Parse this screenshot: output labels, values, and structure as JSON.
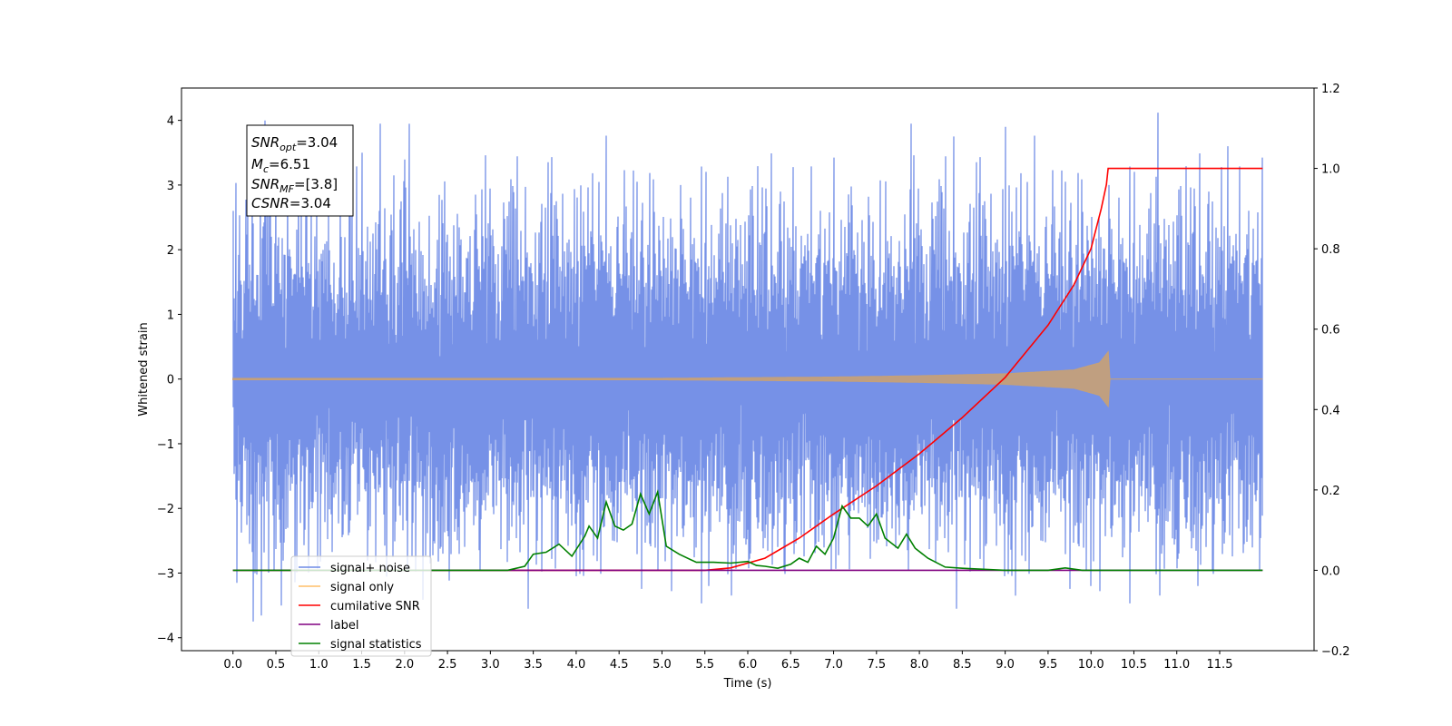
{
  "chart_data": {
    "type": "line",
    "xlabel": "Time (s)",
    "ylabel": "Whitened strain",
    "xlim": [
      -0.6,
      12.6
    ],
    "ylim_left": [
      -4.2,
      4.5
    ],
    "ylim_right": [
      -0.2,
      1.2
    ],
    "x_ticks": [
      "0.0",
      "0.5",
      "1.0",
      "1.5",
      "2.0",
      "2.5",
      "3.0",
      "3.5",
      "4.0",
      "4.5",
      "5.0",
      "5.5",
      "6.0",
      "6.5",
      "7.0",
      "7.5",
      "8.0",
      "8.5",
      "9.0",
      "9.5",
      "10.0",
      "10.5",
      "11.0",
      "11.5"
    ],
    "y_ticks_left": [
      "−4",
      "−3",
      "−2",
      "−1",
      "0",
      "1",
      "2",
      "3",
      "4"
    ],
    "y_ticks_right": [
      "−0.2",
      "0.0",
      "0.2",
      "0.4",
      "0.6",
      "0.8",
      "1.0",
      "1.2"
    ],
    "annotation": {
      "snr_opt": {
        "sym": "SNR",
        "sub": "opt",
        "val": "=3.04"
      },
      "mc": {
        "sym": "M",
        "sub": "c",
        "val": "=6.51"
      },
      "snr_mf": {
        "sym": "SNR",
        "sub": "MF",
        "val": "=[3.8]"
      },
      "csnr": {
        "sym": "CSNR",
        "sub": "",
        "val": "=3.04"
      }
    },
    "legend": {
      "placement": "lower-left",
      "items": [
        {
          "label": "signal+ noise",
          "color": "#6f8be6"
        },
        {
          "label": "signal only",
          "color": "#ffbf69"
        },
        {
          "label": "cumilative SNR",
          "color": "#ff0000"
        },
        {
          "label": "label",
          "color": "#800080"
        },
        {
          "label": "signal statistics",
          "color": "#008000"
        }
      ]
    },
    "series": [
      {
        "name": "signal+ noise",
        "axis": "left",
        "color": "#6f8be6",
        "x_range": [
          0.0,
          12.0
        ],
        "envelope_1sigma": 1.0,
        "max_spikes": [
          {
            "x": 0.0,
            "y": 2.6
          },
          {
            "x": 1.72,
            "y": 3.95
          },
          {
            "x": 1.5,
            "y": 3.5
          },
          {
            "x": 7.9,
            "y": 3.95
          },
          {
            "x": 9.0,
            "y": 3.9
          },
          {
            "x": 10.78,
            "y": 4.12
          },
          {
            "x": 11.6,
            "y": 3.6
          },
          {
            "x": 8.4,
            "y": 3.75
          }
        ],
        "min_spikes": [
          {
            "x": 0.24,
            "y": -3.75
          },
          {
            "x": 0.05,
            "y": -3.15
          },
          {
            "x": 9.12,
            "y": -3.35
          },
          {
            "x": 10.0,
            "y": -3.2
          },
          {
            "x": 11.25,
            "y": -3.2
          },
          {
            "x": 5.55,
            "y": -3.2
          }
        ]
      },
      {
        "name": "signal only",
        "axis": "left",
        "color": "#ffbf69",
        "x_range": [
          0.0,
          12.0
        ],
        "chirp_amplitude": [
          {
            "x": 0.0,
            "y": 0.01
          },
          {
            "x": 5.0,
            "y": 0.01
          },
          {
            "x": 6.0,
            "y": 0.02
          },
          {
            "x": 7.0,
            "y": 0.03
          },
          {
            "x": 8.0,
            "y": 0.05
          },
          {
            "x": 9.0,
            "y": 0.08
          },
          {
            "x": 9.8,
            "y": 0.14
          },
          {
            "x": 10.1,
            "y": 0.25
          },
          {
            "x": 10.2,
            "y": 0.42
          },
          {
            "x": 10.22,
            "y": 0.0
          },
          {
            "x": 12.0,
            "y": 0.0
          }
        ]
      },
      {
        "name": "cumilative SNR",
        "axis": "right",
        "color": "#ff0000",
        "points": [
          {
            "x": 0.0,
            "y": 0.0
          },
          {
            "x": 5.5,
            "y": 0.0
          },
          {
            "x": 5.8,
            "y": 0.006
          },
          {
            "x": 6.2,
            "y": 0.03
          },
          {
            "x": 6.6,
            "y": 0.08
          },
          {
            "x": 7.0,
            "y": 0.14
          },
          {
            "x": 7.5,
            "y": 0.21
          },
          {
            "x": 8.0,
            "y": 0.29
          },
          {
            "x": 8.5,
            "y": 0.38
          },
          {
            "x": 9.0,
            "y": 0.48
          },
          {
            "x": 9.5,
            "y": 0.61
          },
          {
            "x": 9.8,
            "y": 0.71
          },
          {
            "x": 10.0,
            "y": 0.8
          },
          {
            "x": 10.12,
            "y": 0.9
          },
          {
            "x": 10.18,
            "y": 0.96
          },
          {
            "x": 10.2,
            "y": 1.0
          },
          {
            "x": 12.0,
            "y": 1.0
          }
        ]
      },
      {
        "name": "label",
        "axis": "right",
        "color": "#800080",
        "points": [
          {
            "x": 0.0,
            "y": 0.0
          },
          {
            "x": 12.0,
            "y": 0.0
          }
        ]
      },
      {
        "name": "signal statistics",
        "axis": "right",
        "color": "#008000",
        "points": [
          {
            "x": 0.0,
            "y": 0.0
          },
          {
            "x": 3.2,
            "y": 0.0
          },
          {
            "x": 3.4,
            "y": 0.01
          },
          {
            "x": 3.5,
            "y": 0.04
          },
          {
            "x": 3.65,
            "y": 0.045
          },
          {
            "x": 3.8,
            "y": 0.065
          },
          {
            "x": 3.95,
            "y": 0.035
          },
          {
            "x": 4.1,
            "y": 0.085
          },
          {
            "x": 4.15,
            "y": 0.11
          },
          {
            "x": 4.25,
            "y": 0.08
          },
          {
            "x": 4.35,
            "y": 0.17
          },
          {
            "x": 4.45,
            "y": 0.11
          },
          {
            "x": 4.55,
            "y": 0.1
          },
          {
            "x": 4.65,
            "y": 0.115
          },
          {
            "x": 4.75,
            "y": 0.19
          },
          {
            "x": 4.85,
            "y": 0.14
          },
          {
            "x": 4.95,
            "y": 0.195
          },
          {
            "x": 5.05,
            "y": 0.06
          },
          {
            "x": 5.2,
            "y": 0.04
          },
          {
            "x": 5.4,
            "y": 0.02
          },
          {
            "x": 5.6,
            "y": 0.02
          },
          {
            "x": 5.8,
            "y": 0.018
          },
          {
            "x": 6.0,
            "y": 0.022
          },
          {
            "x": 6.1,
            "y": 0.012
          },
          {
            "x": 6.2,
            "y": 0.01
          },
          {
            "x": 6.35,
            "y": 0.005
          },
          {
            "x": 6.5,
            "y": 0.015
          },
          {
            "x": 6.6,
            "y": 0.03
          },
          {
            "x": 6.7,
            "y": 0.02
          },
          {
            "x": 6.8,
            "y": 0.06
          },
          {
            "x": 6.9,
            "y": 0.04
          },
          {
            "x": 7.0,
            "y": 0.08
          },
          {
            "x": 7.1,
            "y": 0.16
          },
          {
            "x": 7.2,
            "y": 0.13
          },
          {
            "x": 7.3,
            "y": 0.13
          },
          {
            "x": 7.4,
            "y": 0.11
          },
          {
            "x": 7.5,
            "y": 0.14
          },
          {
            "x": 7.6,
            "y": 0.08
          },
          {
            "x": 7.75,
            "y": 0.055
          },
          {
            "x": 7.85,
            "y": 0.09
          },
          {
            "x": 7.95,
            "y": 0.055
          },
          {
            "x": 8.1,
            "y": 0.03
          },
          {
            "x": 8.3,
            "y": 0.008
          },
          {
            "x": 8.5,
            "y": 0.005
          },
          {
            "x": 9.0,
            "y": 0.0
          },
          {
            "x": 9.5,
            "y": 0.0
          },
          {
            "x": 9.7,
            "y": 0.006
          },
          {
            "x": 9.9,
            "y": 0.0
          },
          {
            "x": 12.0,
            "y": 0.0
          }
        ]
      }
    ]
  }
}
